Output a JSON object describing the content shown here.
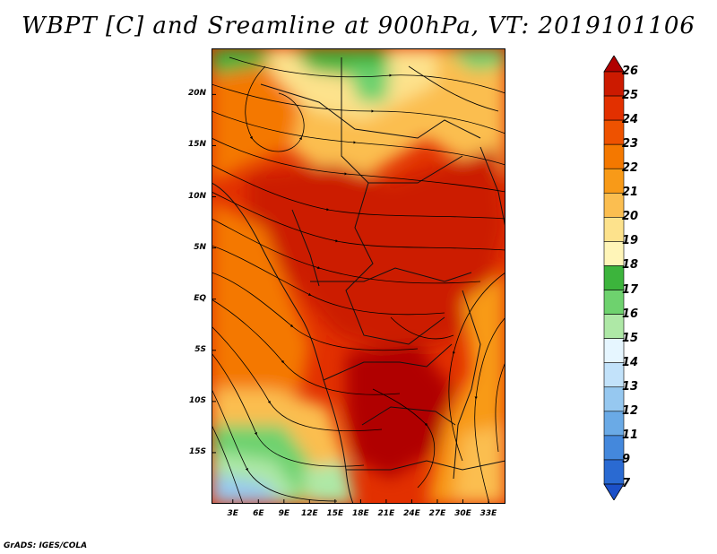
{
  "title": "WBPT [C] and Sreamline at 900hPa, VT: 2019101106",
  "footer": "GrADS: IGES/COLA",
  "map": {
    "lat_ticks": [
      "20N",
      "15N",
      "10N",
      "5N",
      "EQ",
      "5S",
      "10S",
      "15S"
    ],
    "lat_values": [
      20,
      15,
      10,
      5,
      0,
      -5,
      -10,
      -15
    ],
    "lon_ticks": [
      "3E",
      "6E",
      "9E",
      "12E",
      "15E",
      "18E",
      "21E",
      "24E",
      "27E",
      "30E",
      "33E"
    ],
    "lon_values": [
      3,
      6,
      9,
      12,
      15,
      18,
      21,
      24,
      27,
      30,
      33
    ],
    "lat_range": [
      -20,
      24.5
    ],
    "lon_range": [
      0.5,
      35
    ]
  },
  "colorbar": {
    "levels": [
      "26",
      "25",
      "24",
      "23",
      "22",
      "21",
      "20",
      "19",
      "18",
      "17",
      "16",
      "15",
      "14",
      "13",
      "12",
      "11",
      "9",
      "7"
    ],
    "colors": [
      "#b00000",
      "#cc1a00",
      "#e23000",
      "#ee5200",
      "#f47800",
      "#f89a18",
      "#fbbe50",
      "#fde28c",
      "#fff5b8",
      "#3cb43c",
      "#6ed26e",
      "#aee8a6",
      "#e6f6ff",
      "#c2e2fa",
      "#96c8f0",
      "#6aaae6",
      "#4488dc",
      "#2a6ad2",
      "#1c50c8"
    ]
  }
}
